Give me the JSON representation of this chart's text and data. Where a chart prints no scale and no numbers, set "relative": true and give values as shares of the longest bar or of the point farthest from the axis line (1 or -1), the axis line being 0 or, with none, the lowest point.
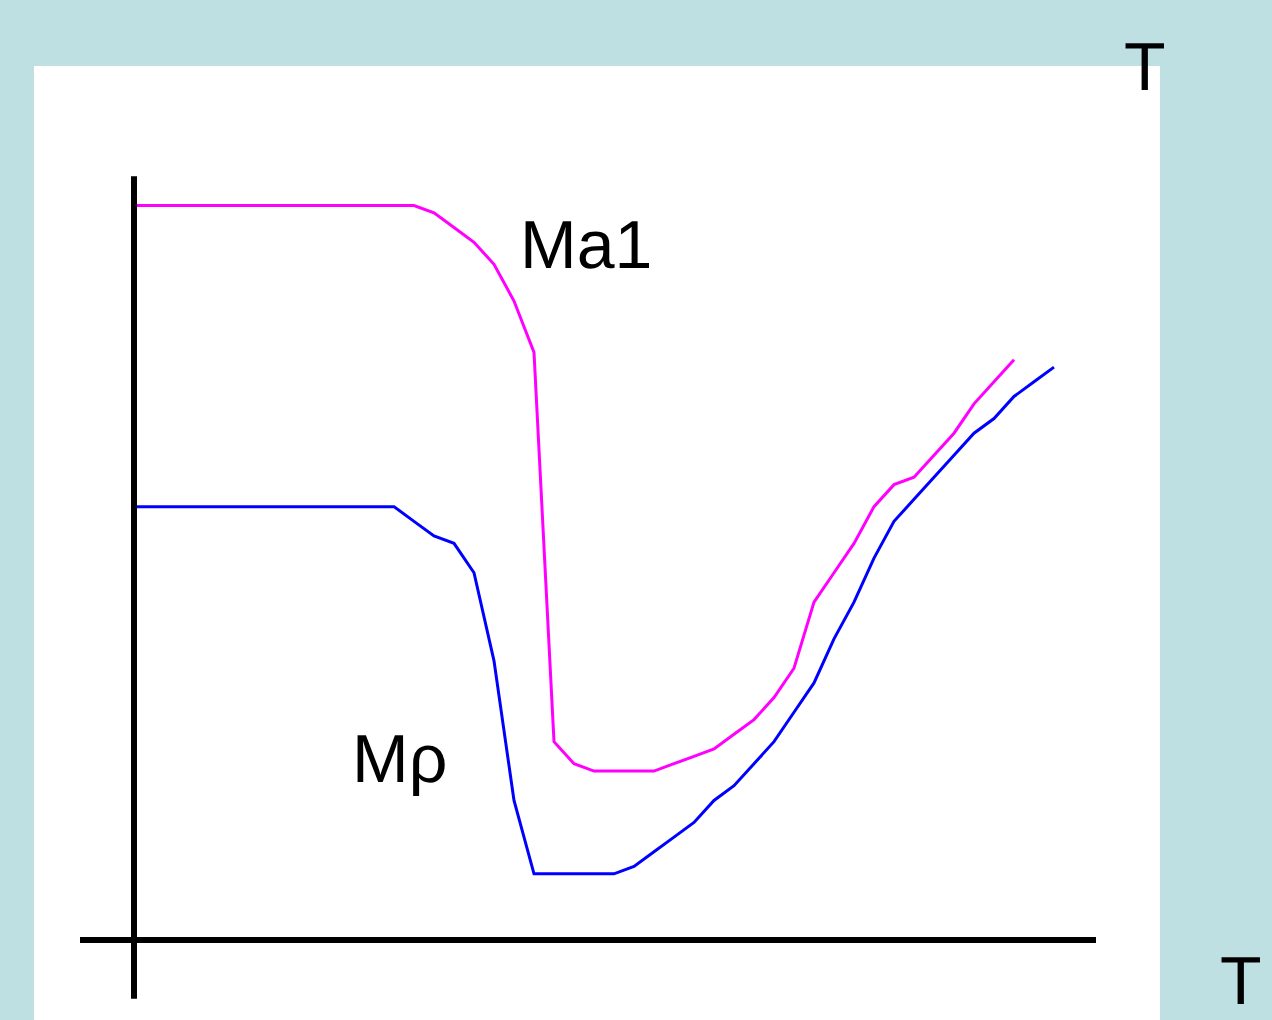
{
  "chart_data": {
    "type": "line",
    "relative": true,
    "xlabel": "T",
    "ylabel": "T",
    "legend": false,
    "marker": "none",
    "line_style": "solid",
    "categories": [
      null,
      null,
      null,
      null,
      null,
      null,
      null,
      null,
      null,
      null,
      null,
      null,
      null,
      null,
      null,
      null,
      null,
      null,
      null,
      null,
      null,
      null,
      null,
      null,
      null,
      null,
      null,
      null,
      null,
      null,
      null,
      null,
      null,
      null,
      null,
      null,
      null,
      null,
      null,
      null,
      null,
      null,
      null,
      null,
      null,
      null,
      null
    ],
    "series": [
      {
        "name": "Ma1",
        "color": "#ff00ff",
        "values": [
          1.0,
          1.0,
          1.0,
          1.0,
          1.0,
          1.0,
          1.0,
          1.0,
          1.0,
          1.0,
          1.0,
          1.0,
          1.0,
          1.0,
          1.0,
          0.99,
          0.97,
          0.95,
          0.92,
          0.87,
          0.8,
          0.27,
          0.24,
          0.23,
          0.23,
          0.23,
          0.23,
          0.24,
          0.25,
          0.26,
          0.28,
          0.3,
          0.33,
          0.37,
          0.46,
          0.5,
          0.54,
          0.59,
          0.62,
          0.63,
          0.66,
          0.69,
          0.73,
          0.76,
          0.79,
          null,
          null
        ]
      },
      {
        "name": "Mρ",
        "color": "#0000ff",
        "values": [
          0.59,
          0.59,
          0.59,
          0.59,
          0.59,
          0.59,
          0.59,
          0.59,
          0.59,
          0.59,
          0.59,
          0.59,
          0.59,
          0.59,
          0.57,
          0.55,
          0.54,
          0.5,
          0.38,
          0.19,
          0.09,
          0.09,
          0.09,
          0.09,
          0.09,
          0.1,
          0.12,
          0.14,
          0.16,
          0.19,
          0.21,
          0.24,
          0.27,
          0.31,
          0.35,
          0.41,
          0.46,
          0.52,
          0.57,
          0.6,
          0.63,
          0.66,
          0.69,
          0.71,
          0.74,
          0.76,
          0.78
        ]
      }
    ]
  }
}
